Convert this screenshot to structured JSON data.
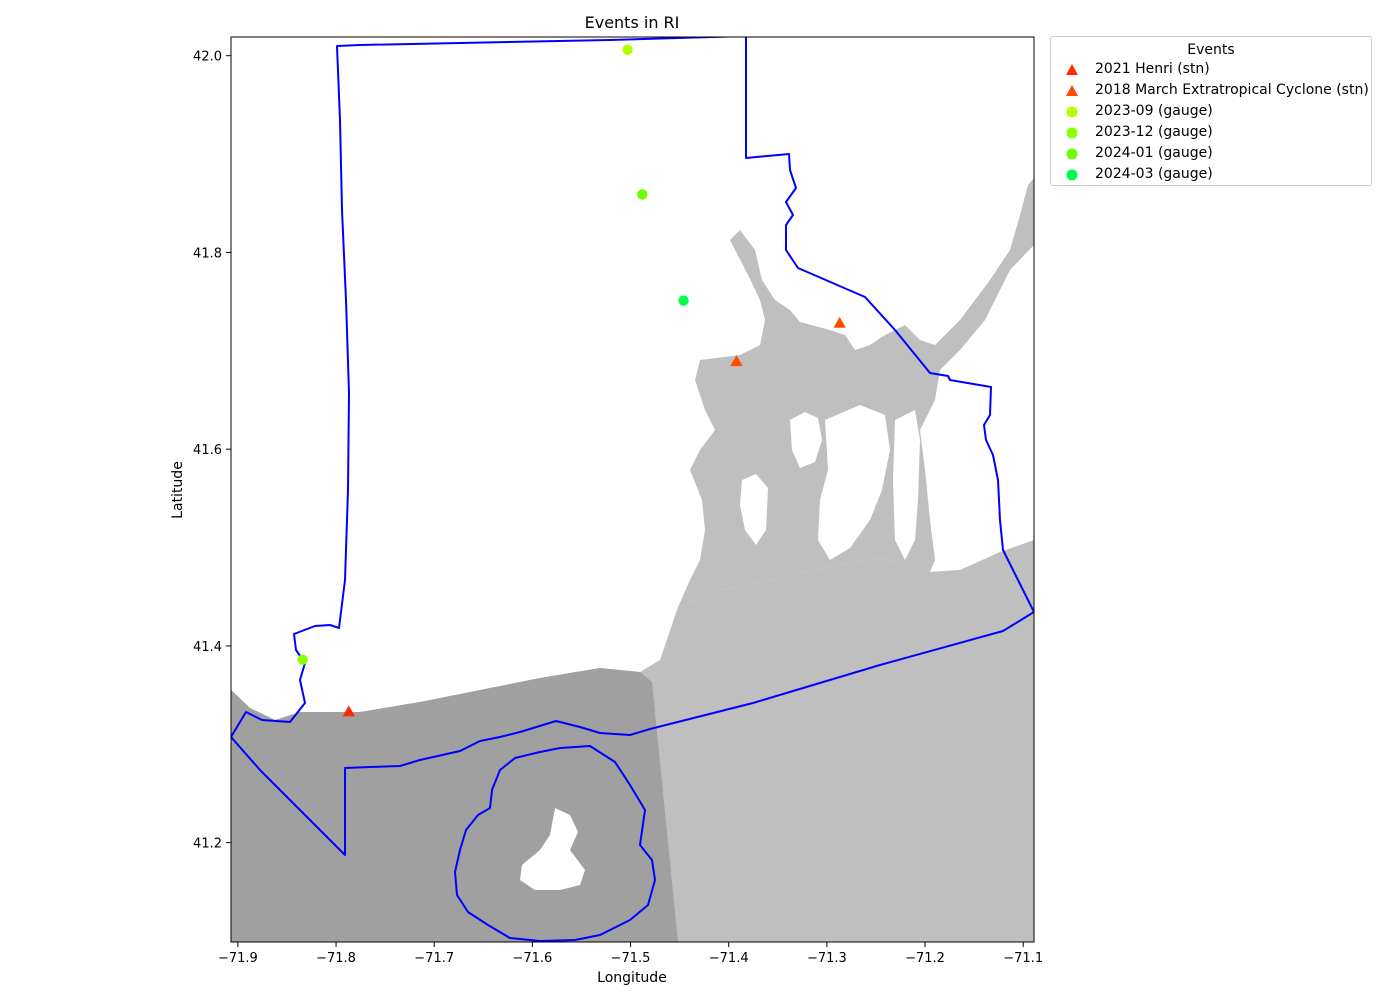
{
  "chart_data": {
    "type": "scatter",
    "title": "Events in RI",
    "xlabel": "Longitude",
    "ylabel": "Latitude",
    "xlim": [
      -71.907,
      -71.089
    ],
    "ylim": [
      41.099,
      42.019
    ],
    "xticks": [
      -71.9,
      -71.8,
      -71.7,
      -71.6,
      -71.5,
      -71.4,
      -71.3,
      -71.2,
      -71.1
    ],
    "xtick_labels": [
      "−71.9",
      "−71.8",
      "−71.7",
      "−71.6",
      "−71.5",
      "−71.4",
      "−71.3",
      "−71.2",
      "−71.1"
    ],
    "yticks": [
      41.2,
      41.4,
      41.6,
      41.8,
      42.0
    ],
    "ytick_labels": [
      "41.2",
      "41.4",
      "41.6",
      "41.8",
      "42.0"
    ],
    "grid": false,
    "legend_title": "Events",
    "legend_placement": "outside-upper-right",
    "series": [
      {
        "name": "2021 Henri (stn)",
        "marker": "triangle",
        "color": "#ff2a00",
        "x": [
          -71.787
        ],
        "y": [
          41.333
        ]
      },
      {
        "name": "2018 March Extratropical Cyclone (stn)",
        "marker": "triangle",
        "color": "#ff4a00",
        "x": [
          -71.392,
          -71.287
        ],
        "y": [
          41.689,
          41.728
        ]
      },
      {
        "name": "2023-09 (gauge)",
        "marker": "circle",
        "color": "#b2ff00",
        "x": [
          -71.503
        ],
        "y": [
          42.006
        ]
      },
      {
        "name": "2023-12 (gauge)",
        "marker": "circle",
        "color": "#8cff00",
        "x": [
          -71.834
        ],
        "y": [
          41.386
        ]
      },
      {
        "name": "2024-01 (gauge)",
        "marker": "circle",
        "color": "#6cff00",
        "x": [
          -71.488
        ],
        "y": [
          41.859
        ]
      },
      {
        "name": "2024-03 (gauge)",
        "marker": "circle",
        "color": "#00ff4a",
        "x": [
          -71.446
        ],
        "y": [
          41.751
        ]
      }
    ],
    "map_layers": {
      "land_color": "#ffffff",
      "water_color": "#bfbfbf",
      "sea_dark_color": "#a0a0a0",
      "boundary_color": "#0000ff"
    }
  }
}
